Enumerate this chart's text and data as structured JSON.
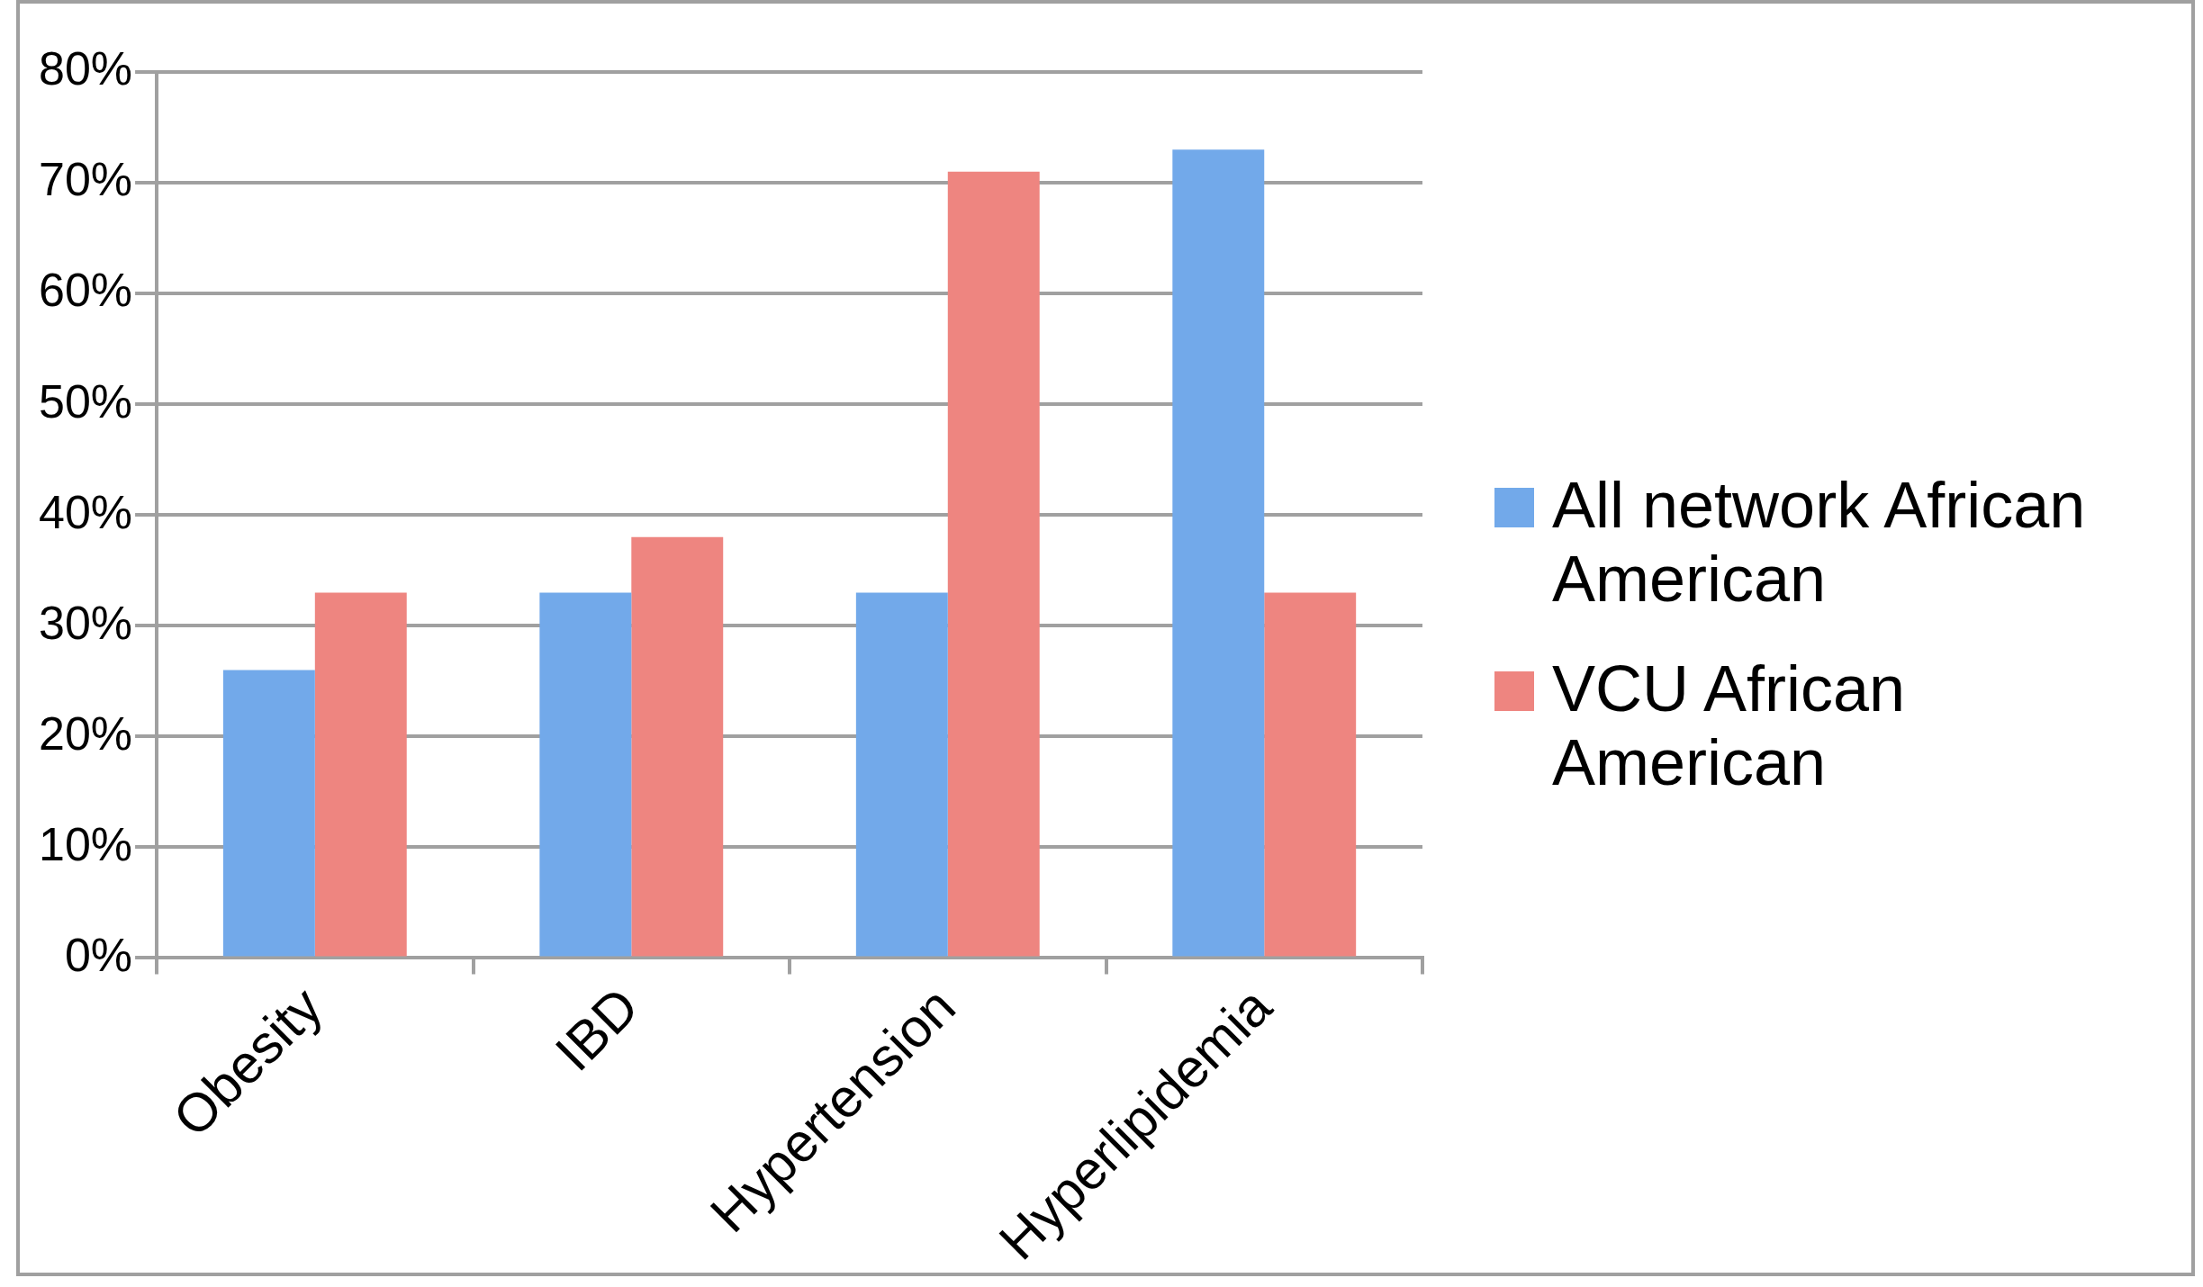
{
  "chart_data": {
    "type": "bar",
    "categories": [
      "Obesity",
      "IBD",
      "Hypertension",
      "Hyperlipidemia"
    ],
    "series": [
      {
        "name": "All network African American",
        "color": "#72a9ea",
        "values": [
          26,
          33,
          33,
          73
        ]
      },
      {
        "name": "VCU African American",
        "color": "#ee8580",
        "values": [
          33,
          38,
          71,
          33
        ]
      }
    ],
    "ylim": [
      0,
      80
    ],
    "yticks": [
      {
        "value": 0,
        "label": "0%"
      },
      {
        "value": 10,
        "label": "10%"
      },
      {
        "value": 20,
        "label": "20%"
      },
      {
        "value": 30,
        "label": "30%"
      },
      {
        "value": 40,
        "label": "40%"
      },
      {
        "value": 50,
        "label": "50%"
      },
      {
        "value": 60,
        "label": "60%"
      },
      {
        "value": 70,
        "label": "70%"
      },
      {
        "value": 80,
        "label": "80%"
      }
    ],
    "grid": "y",
    "legend": "right"
  }
}
